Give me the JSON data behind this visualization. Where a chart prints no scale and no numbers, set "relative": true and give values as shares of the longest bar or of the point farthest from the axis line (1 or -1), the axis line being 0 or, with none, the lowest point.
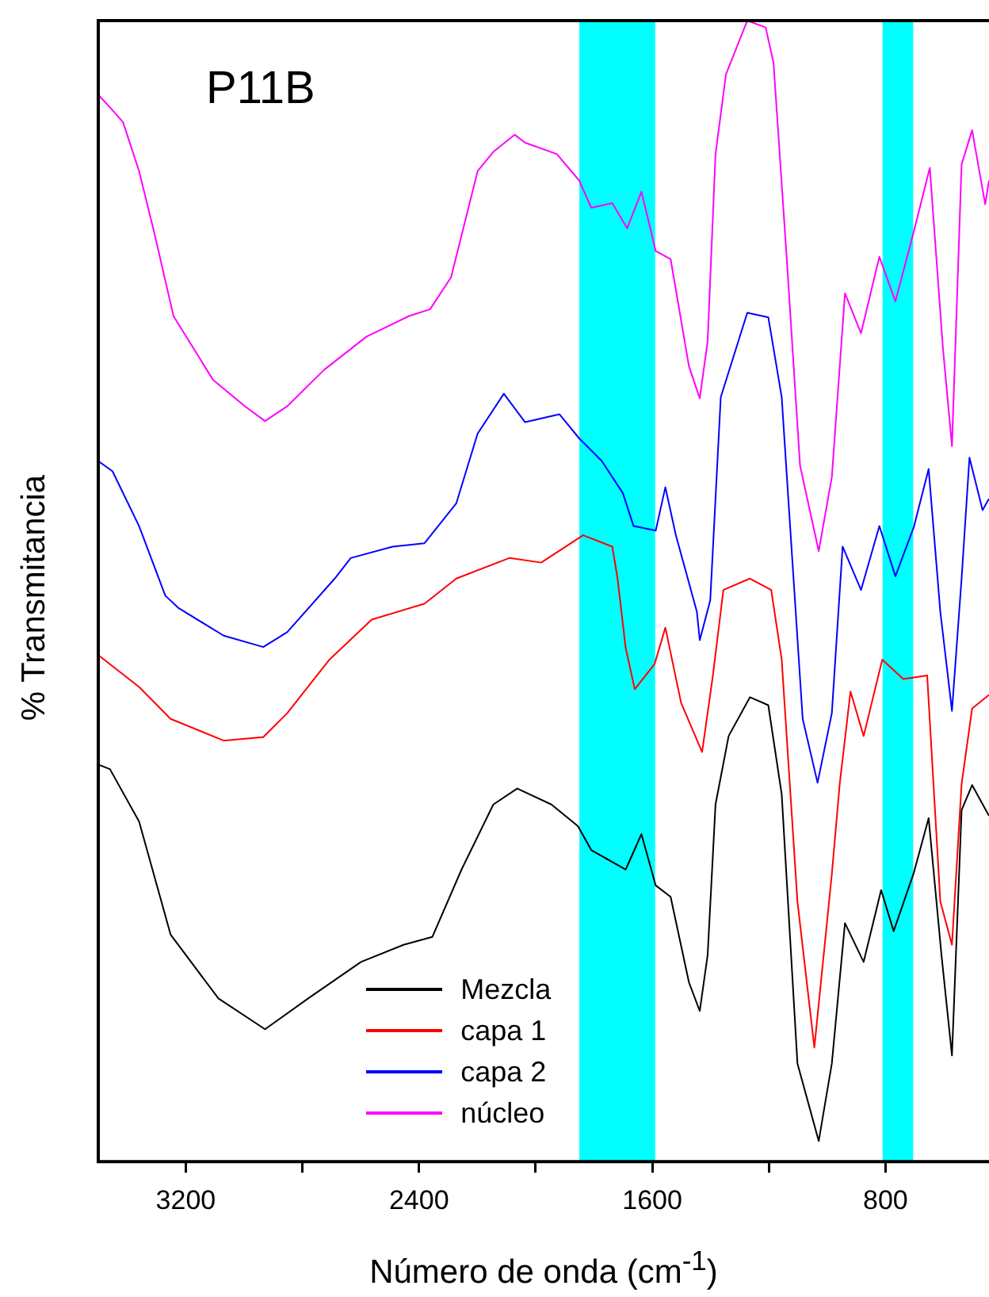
{
  "chart_data": {
    "type": "line",
    "title": "P11B",
    "xlabel": "Número de onda (cm$^{-1}$)",
    "ylabel": "% Transmitancia",
    "relative": true,
    "xlim": [
      3500,
      445
    ],
    "xticks": [
      3200,
      {
        "value": 2800,
        "label": null
      },
      2400,
      {
        "value": 2000,
        "label": null
      },
      1600,
      {
        "value": 1200,
        "label": null
      },
      800
    ],
    "legend": "bottom",
    "grid": false,
    "marker": "none",
    "line_style": "solid",
    "bands": [
      {
        "axis": "x",
        "from": 1850,
        "to": 1590,
        "color": "#00ffff"
      },
      {
        "axis": "x",
        "from": 810,
        "to": 705,
        "color": "#00ffff"
      }
    ],
    "series": [
      {
        "name": "Mezcla",
        "color": "#000000",
        "x": [
          3500,
          3460,
          3360,
          3252,
          3088,
          2928,
          2780,
          2599,
          2453,
          2354,
          2254,
          2145,
          2063,
          1946,
          1855,
          1809,
          1691,
          1637,
          1588,
          1537,
          1474,
          1437,
          1410,
          1383,
          1338,
          1265,
          1202,
          1156,
          1102,
          1029,
          984,
          939,
          875,
          815,
          772,
          703,
          652,
          608,
          572,
          539,
          503,
          445
        ],
        "values": [
          0.348,
          0.344,
          0.298,
          0.199,
          0.143,
          0.116,
          0.143,
          0.175,
          0.19,
          0.197,
          0.256,
          0.313,
          0.327,
          0.313,
          0.294,
          0.273,
          0.256,
          0.287,
          0.242,
          0.232,
          0.157,
          0.132,
          0.181,
          0.313,
          0.373,
          0.407,
          0.4,
          0.322,
          0.086,
          0.018,
          0.086,
          0.209,
          0.175,
          0.238,
          0.202,
          0.253,
          0.301,
          0.181,
          0.093,
          0.308,
          0.33,
          0.303
        ]
      },
      {
        "name": "capa 1",
        "color": "#ff0000",
        "x": [
          3500,
          3360,
          3252,
          3070,
          2934,
          2852,
          2707,
          2562,
          2381,
          2272,
          2090,
          1981,
          1837,
          1737,
          1719,
          1691,
          1660,
          1592,
          1555,
          1501,
          1429,
          1392,
          1356,
          1265,
          1192,
          1156,
          1102,
          1044,
          984,
          957,
          920,
          875,
          811,
          739,
          657,
          612,
          572,
          539,
          503,
          445
        ],
        "values": [
          0.444,
          0.416,
          0.388,
          0.369,
          0.372,
          0.393,
          0.44,
          0.475,
          0.489,
          0.511,
          0.529,
          0.525,
          0.549,
          0.539,
          0.511,
          0.45,
          0.414,
          0.436,
          0.468,
          0.402,
          0.359,
          0.426,
          0.501,
          0.511,
          0.501,
          0.44,
          0.228,
          0.1,
          0.252,
          0.331,
          0.412,
          0.373,
          0.44,
          0.423,
          0.426,
          0.228,
          0.19,
          0.331,
          0.397,
          0.409
        ]
      },
      {
        "name": "capa 2",
        "color": "#0000ff",
        "x": [
          3500,
          3451,
          3360,
          3270,
          3224,
          3070,
          2934,
          2852,
          2689,
          2634,
          2490,
          2381,
          2272,
          2199,
          2109,
          2036,
          1918,
          1851,
          1773,
          1701,
          1664,
          1588,
          1555,
          1519,
          1447,
          1437,
          1401,
          1365,
          1274,
          1202,
          1156,
          1120,
          1084,
          1033,
          984,
          947,
          884,
          821,
          766,
          703,
          652,
          612,
          572,
          539,
          512,
          467,
          445
        ],
        "values": [
          0.614,
          0.605,
          0.557,
          0.496,
          0.485,
          0.461,
          0.451,
          0.464,
          0.511,
          0.529,
          0.539,
          0.542,
          0.577,
          0.638,
          0.673,
          0.648,
          0.655,
          0.634,
          0.614,
          0.586,
          0.557,
          0.553,
          0.591,
          0.549,
          0.482,
          0.457,
          0.492,
          0.67,
          0.744,
          0.74,
          0.67,
          0.529,
          0.388,
          0.332,
          0.393,
          0.539,
          0.501,
          0.557,
          0.513,
          0.556,
          0.607,
          0.482,
          0.395,
          0.511,
          0.617,
          0.571,
          0.581
        ]
      },
      {
        "name": "núcleo",
        "color": "#ff00ff",
        "x": [
          3500,
          3460,
          3415,
          3360,
          3306,
          3242,
          3106,
          2997,
          2928,
          2852,
          2725,
          2580,
          2435,
          2362,
          2290,
          2199,
          2145,
          2072,
          2036,
          1927,
          1851,
          1809,
          1737,
          1686,
          1637,
          1588,
          1537,
          1474,
          1437,
          1410,
          1383,
          1347,
          1274,
          1211,
          1184,
          1138,
          1093,
          1029,
          984,
          939,
          884,
          821,
          766,
          703,
          648,
          603,
          572,
          539,
          503,
          458,
          445
        ],
        "values": [
          0.935,
          0.924,
          0.911,
          0.868,
          0.812,
          0.741,
          0.685,
          0.662,
          0.649,
          0.662,
          0.694,
          0.723,
          0.741,
          0.747,
          0.775,
          0.868,
          0.885,
          0.9,
          0.893,
          0.883,
          0.86,
          0.836,
          0.84,
          0.818,
          0.85,
          0.798,
          0.791,
          0.697,
          0.669,
          0.719,
          0.883,
          0.953,
          1,
          0.994,
          0.963,
          0.789,
          0.61,
          0.535,
          0.6,
          0.761,
          0.726,
          0.793,
          0.754,
          0.815,
          0.871,
          0.713,
          0.627,
          0.874,
          0.904,
          0.839,
          0.86
        ]
      }
    ]
  }
}
